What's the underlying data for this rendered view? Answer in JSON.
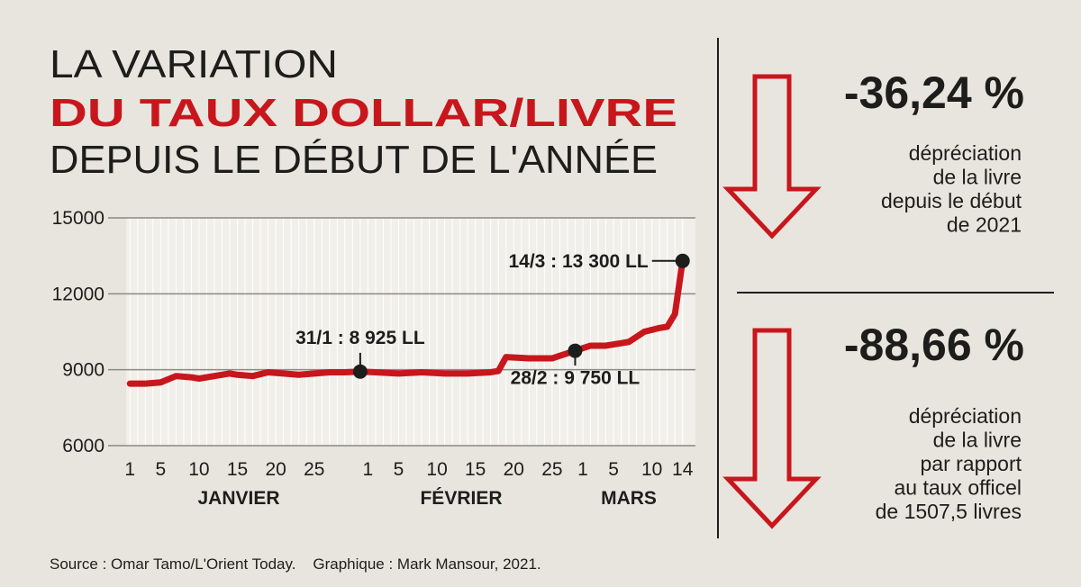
{
  "title_lines": [
    "LA VARIATION",
    "DU TAUX DOLLAR/LIVRE",
    "DEPUIS LE DÉBUT DE L'ANNÉE"
  ],
  "chart_data": {
    "type": "line",
    "color": "#c8161d",
    "x": [
      1,
      3,
      5,
      7,
      9,
      10,
      12,
      14,
      15,
      17,
      19,
      21,
      23,
      25,
      27,
      29,
      31,
      33,
      36,
      39,
      42,
      45,
      48,
      49,
      50,
      53,
      56,
      57,
      58,
      59,
      61,
      63,
      65,
      66,
      68,
      70,
      71,
      72,
      73
    ],
    "values": [
      8450,
      8450,
      8500,
      8750,
      8700,
      8650,
      8750,
      8850,
      8800,
      8750,
      8900,
      8850,
      8800,
      8850,
      8900,
      8900,
      8925,
      8900,
      8850,
      8900,
      8850,
      8850,
      8900,
      8950,
      9500,
      9450,
      9450,
      9550,
      9650,
      9750,
      9950,
      9950,
      10050,
      10100,
      10500,
      10650,
      10700,
      11200,
      13300
    ],
    "xlim": [
      0.5,
      73.5
    ],
    "ylim": [
      6000,
      15000
    ],
    "xticks": [
      1,
      5,
      10,
      15,
      20,
      25,
      {
        "value": 32,
        "label": "1"
      },
      {
        "value": 36,
        "label": "5"
      },
      {
        "value": 41,
        "label": "10"
      },
      {
        "value": 46,
        "label": "15"
      },
      {
        "value": 51,
        "label": "20"
      },
      {
        "value": 56,
        "label": "25"
      },
      {
        "value": 60,
        "label": "1"
      },
      {
        "value": 64,
        "label": "5"
      },
      {
        "value": 69,
        "label": "10"
      },
      {
        "value": 73,
        "label": "14"
      }
    ],
    "yticks": [
      6000,
      9000,
      12000,
      15000
    ],
    "month_labels": [
      "JANVIER",
      "FÉVRIER",
      "MARS"
    ],
    "annotations": [
      {
        "x": 31,
        "y": 8925,
        "label": "31/1 : 8 925 LL"
      },
      {
        "x": 59,
        "y": 9750,
        "label": "28/2 : 9 750 LL"
      },
      {
        "x": 73,
        "y": 13300,
        "label": "14/3 : 13 300 LL"
      }
    ],
    "grid": true
  },
  "stats": [
    {
      "value": "-36,24 %",
      "lines": [
        "dépréciation",
        "de la livre",
        "depuis le début",
        "de 2021"
      ]
    },
    {
      "value": "-88,66 %",
      "lines": [
        "dépréciation",
        "de la livre",
        "par rapport",
        "au taux officel",
        "de 1507,5 livres"
      ]
    }
  ],
  "source": "Source : Omar Tamo/L'Orient Today.    Graphique : Mark Mansour, 2021."
}
